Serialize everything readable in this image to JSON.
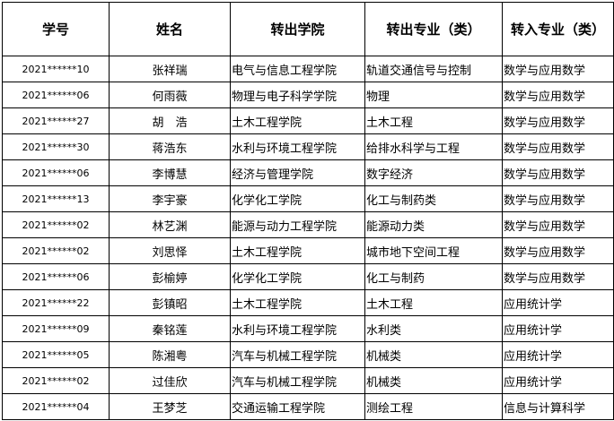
{
  "headers": [
    "学号",
    "姓名",
    "转出学院",
    "转出专业（类）",
    "转入专业（类）"
  ],
  "rows": [
    [
      "2021******10",
      "张祥瑞",
      "电气与信息工程学院",
      "轨道交通信号与控制",
      "数学与应用数学"
    ],
    [
      "2021******06",
      "何雨薇",
      "物理与电子科学学院",
      "物理",
      "数学与应用数学"
    ],
    [
      "2021******27",
      "胡　浩",
      "土木工程学院",
      "土木工程",
      "数学与应用数学"
    ],
    [
      "2021******30",
      "蒋浩东",
      "水利与环境工程学院",
      "给排水科学与工程",
      "数学与应用数学"
    ],
    [
      "2021******06",
      "李博慧",
      "经济与管理学院",
      "数字经济",
      "数学与应用数学"
    ],
    [
      "2021******13",
      "李宇豪",
      "化学化工学院",
      "化工与制药类",
      "数学与应用数学"
    ],
    [
      "2021******02",
      "林艺渊",
      "能源与动力工程学院",
      "能源动力类",
      "数学与应用数学"
    ],
    [
      "2021******02",
      "刘思怿",
      "土木工程学院",
      "城市地下空间工程",
      "数学与应用数学"
    ],
    [
      "2021******06",
      "彭榆婷",
      "化学化工学院",
      "化工与制药",
      "数学与应用数学"
    ],
    [
      "2021******22",
      "彭镇昭",
      "土木工程学院",
      "土木工程",
      "应用统计学"
    ],
    [
      "2021******09",
      "秦铭莲",
      "水利与环境工程学院",
      "水利类",
      "应用统计学"
    ],
    [
      "2021******05",
      "陈湘粤",
      "汽车与机械工程学院",
      "机械类",
      "应用统计学"
    ],
    [
      "2021******02",
      "过佳欣",
      "汽车与机械工程学院",
      "机械类",
      "应用统计学"
    ],
    [
      "2021******04",
      "王梦芝",
      "交通运输工程学院",
      "测绘工程",
      "信息与计算科学"
    ]
  ]
}
